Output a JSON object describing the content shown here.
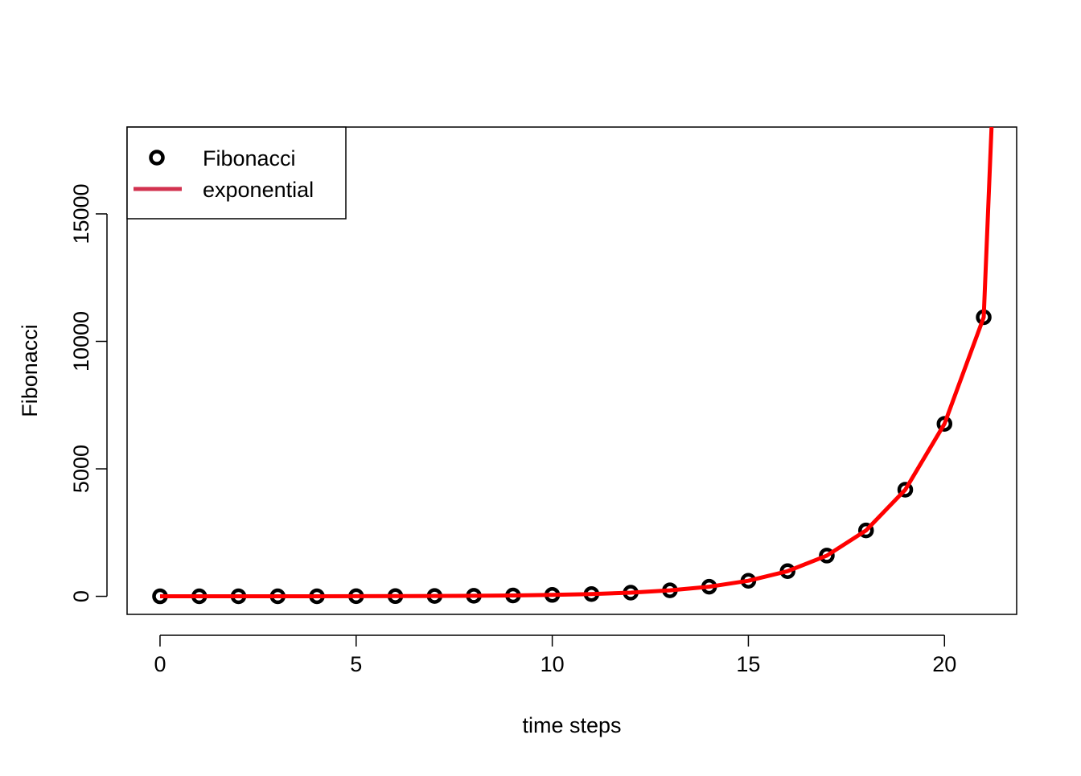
{
  "chart_data": {
    "type": "scatter",
    "xlabel": "time steps",
    "ylabel": "Fibonacci",
    "xlim": [
      -0.84,
      21.84
    ],
    "ylim": [
      -708,
      18406
    ],
    "x_ticks": [
      0,
      5,
      10,
      15,
      20
    ],
    "y_ticks": [
      0,
      5000,
      10000,
      15000
    ],
    "x_tick_labels": [
      "0",
      "5",
      "10",
      "15",
      "20"
    ],
    "y_tick_labels": [
      "0",
      "5000",
      "10000",
      "15000"
    ],
    "grid": false,
    "legend_position": "top-left",
    "series": [
      {
        "name": "Fibonacci",
        "kind": "points",
        "color": "#000000",
        "x": [
          0,
          1,
          2,
          3,
          4,
          5,
          6,
          7,
          8,
          9,
          10,
          11,
          12,
          13,
          14,
          15,
          16,
          17,
          18,
          19,
          20,
          21
        ],
        "y": [
          0,
          1,
          1,
          2,
          3,
          5,
          8,
          13,
          21,
          34,
          55,
          89,
          144,
          233,
          377,
          610,
          987,
          1597,
          2584,
          4181,
          6765,
          10946
        ]
      },
      {
        "name": "exponential",
        "kind": "line",
        "color": "#ff0000",
        "legend_color": "#d2324f",
        "x": [
          0,
          1,
          2,
          3,
          4,
          5,
          6,
          7,
          8,
          9,
          10,
          11,
          12,
          13,
          14,
          15,
          16,
          17,
          18,
          19,
          20,
          21,
          21.2
        ],
        "y": [
          0.45,
          0.72,
          1.17,
          1.9,
          3.07,
          4.96,
          8.03,
          13,
          21,
          34,
          55,
          89,
          144,
          233,
          377,
          610,
          987,
          1597,
          2584,
          4181,
          6765,
          10946,
          18406
        ]
      }
    ]
  }
}
